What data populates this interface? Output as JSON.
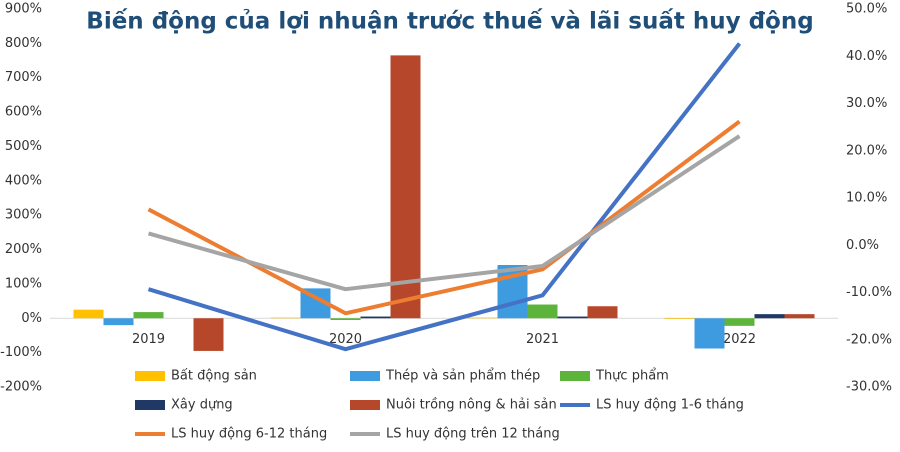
{
  "chart_data": {
    "type": "bar",
    "title": "Biến động của lợi nhuận trước thuế và lãi suất huy động",
    "categories": [
      "2019",
      "2020",
      "2021",
      "2022"
    ],
    "ylim": [
      -200,
      900
    ],
    "yticks": [
      {
        "value": -200,
        "label": "-200%"
      },
      {
        "value": -100,
        "label": "-100%"
      },
      {
        "value": 0,
        "label": "0%"
      },
      {
        "value": 100,
        "label": "100%"
      },
      {
        "value": 200,
        "label": "200%"
      },
      {
        "value": 300,
        "label": "300%"
      },
      {
        "value": 400,
        "label": "400%"
      },
      {
        "value": 500,
        "label": "500%"
      },
      {
        "value": 600,
        "label": "600%"
      },
      {
        "value": 700,
        "label": "700%"
      },
      {
        "value": 800,
        "label": "800%"
      },
      {
        "value": 900,
        "label": "900%"
      }
    ],
    "y2lim": [
      -30,
      50
    ],
    "y2ticks": [
      {
        "value": -30,
        "label": "-30.0%"
      },
      {
        "value": -20,
        "label": "-20.0%"
      },
      {
        "value": -10,
        "label": "-10.0%"
      },
      {
        "value": 0,
        "label": "0.0%"
      },
      {
        "value": 10,
        "label": "10.0%"
      },
      {
        "value": 20,
        "label": "20.0%"
      },
      {
        "value": 30,
        "label": "30.0%"
      },
      {
        "value": 40,
        "label": "40.0%"
      },
      {
        "value": 50,
        "label": "50.0%"
      }
    ],
    "series": [
      {
        "name": "Bất động sản",
        "type": "bar",
        "color": "#FFC000",
        "values": [
          25,
          2,
          2,
          -2
        ]
      },
      {
        "name": "Thép và sản phẩm thép",
        "type": "bar",
        "color": "#3F9BE0",
        "values": [
          -20,
          87,
          155,
          -88
        ]
      },
      {
        "name": "Thực phẩm",
        "type": "bar",
        "color": "#5DB43A",
        "values": [
          18,
          -5,
          40,
          -22
        ]
      },
      {
        "name": "Xây dựng",
        "type": "bar",
        "color": "#1F3864",
        "values": [
          0,
          5,
          5,
          12
        ]
      },
      {
        "name": "Nuôi trồng nông & hải sản",
        "type": "bar",
        "color": "#B7472A",
        "values": [
          -95,
          765,
          35,
          12
        ]
      },
      {
        "name": "LS huy động 1-6 tháng",
        "type": "line",
        "axis": "y2",
        "color": "#4472C4",
        "values": [
          -9.3,
          -22,
          -10.6,
          42.7
        ]
      },
      {
        "name": "LS huy động 6-12 tháng",
        "type": "line",
        "axis": "y2",
        "color": "#ED7D31",
        "values": [
          7.6,
          -14.4,
          -5.1,
          26.2
        ]
      },
      {
        "name": "LS huy động trên 12 tháng",
        "type": "line",
        "axis": "y2",
        "color": "#A5A5A5",
        "values": [
          2.5,
          -9.3,
          -4.4,
          23.1
        ]
      }
    ]
  }
}
